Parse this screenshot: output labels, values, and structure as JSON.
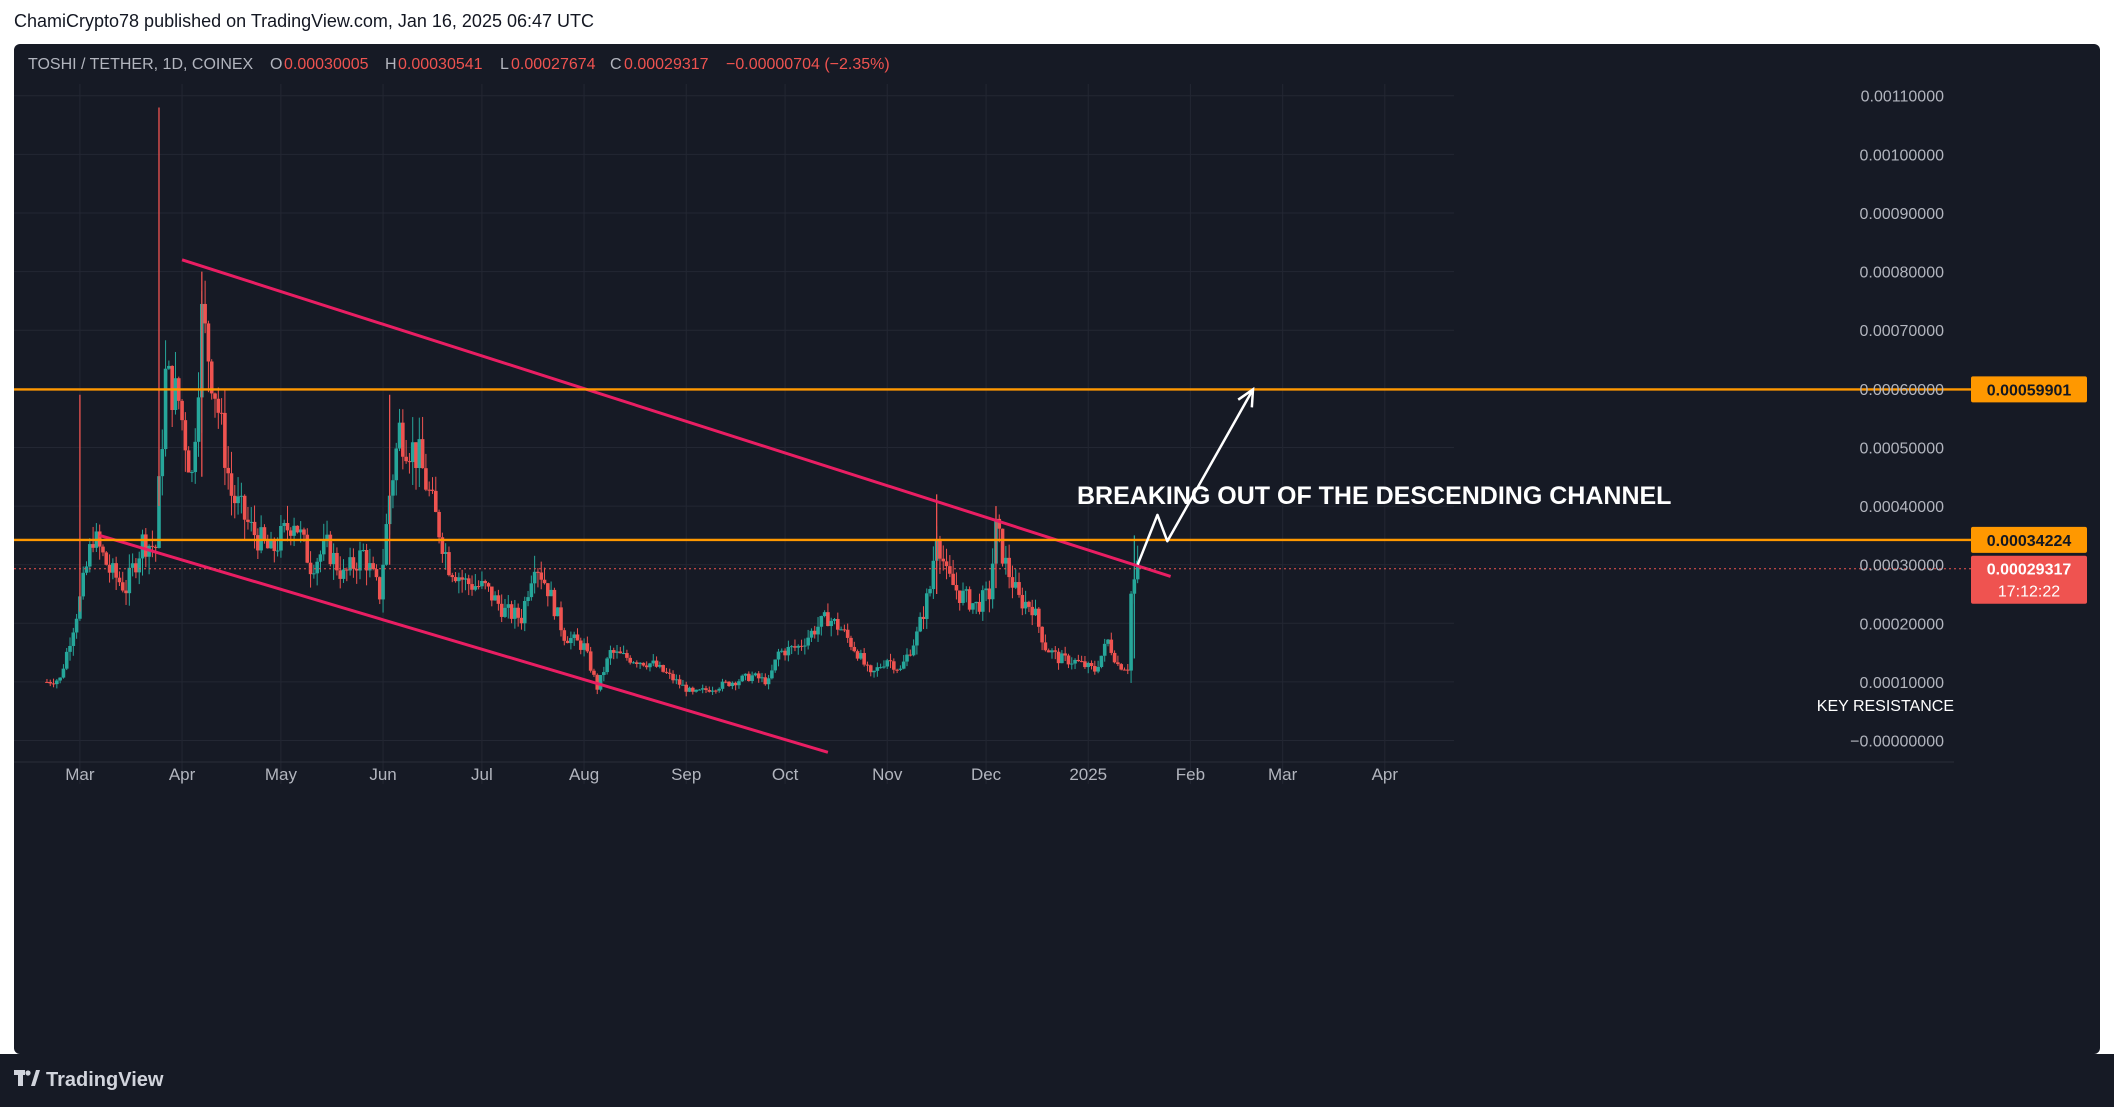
{
  "publish_line": "ChamiCrypto78 published on TradingView.com, Jan 16, 2025 06:47 UTC",
  "brand": "TradingView",
  "colors": {
    "background": "#161a25",
    "grid": "#232733",
    "up": "#26a69a",
    "down": "#ef5350",
    "channel": "#e91e63",
    "level": "#ff9800",
    "text": "#b2b5be",
    "annotation": "#ffffff"
  },
  "icons": {
    "brand_mark": "tradingview-logo-icon"
  },
  "chart_data": {
    "type": "candlestick",
    "symbol": "TOSHI / TETHER, 1D, COINEX",
    "ohlc": {
      "o_label": "O",
      "o": "0.00030005",
      "h_label": "H",
      "h": "0.00030541",
      "l_label": "L",
      "l": "0.00027674",
      "c_label": "C",
      "c": "0.00029317",
      "change": "−0.00000704 (−2.35%)"
    },
    "x_range": [
      "2024-02-10",
      "2025-04-22"
    ],
    "y_range": [
      -4e-05,
      0.00112
    ],
    "y_ticks": [
      "0.00110000",
      "0.00100000",
      "0.00090000",
      "0.00080000",
      "0.00070000",
      "0.00060000",
      "0.00050000",
      "0.00040000",
      "0.00030000",
      "0.00020000",
      "0.00010000",
      "−0.00000000"
    ],
    "y_tick_values": [
      0.0011,
      0.001,
      0.0009,
      0.0008,
      0.0007,
      0.0006,
      0.0005,
      0.0004,
      0.0003,
      0.0002,
      0.0001,
      0.0
    ],
    "x_ticks": [
      "Mar",
      "Apr",
      "May",
      "Jun",
      "Jul",
      "Aug",
      "Sep",
      "Oct",
      "Nov",
      "Dec",
      "2025",
      "Feb",
      "Mar",
      "Apr"
    ],
    "x_tick_dates": [
      "2024-03-01",
      "2024-04-01",
      "2024-05-01",
      "2024-06-01",
      "2024-07-01",
      "2024-08-01",
      "2024-09-01",
      "2024-10-01",
      "2024-11-01",
      "2024-12-01",
      "2025-01-01",
      "2025-02-01",
      "2025-03-01",
      "2025-04-01"
    ],
    "close_path": [
      [
        "2024-02-20",
        0.0001
      ],
      [
        "2024-02-24",
        0.000105
      ],
      [
        "2024-03-01",
        0.00024
      ],
      [
        "2024-03-05",
        0.00035
      ],
      [
        "2024-03-10",
        0.00029
      ],
      [
        "2024-03-15",
        0.00026
      ],
      [
        "2024-03-20",
        0.00034
      ],
      [
        "2024-03-24",
        0.00033
      ],
      [
        "2024-03-27",
        0.00062
      ],
      [
        "2024-03-31",
        0.00058
      ],
      [
        "2024-04-04",
        0.00045
      ],
      [
        "2024-04-07",
        0.00072
      ],
      [
        "2024-04-11",
        0.0006
      ],
      [
        "2024-04-16",
        0.00042
      ],
      [
        "2024-04-22",
        0.00036
      ],
      [
        "2024-04-28",
        0.00032
      ],
      [
        "2024-05-05",
        0.00038
      ],
      [
        "2024-05-10",
        0.0003
      ],
      [
        "2024-05-15",
        0.00033
      ],
      [
        "2024-05-20",
        0.00028
      ],
      [
        "2024-05-26",
        0.00032
      ],
      [
        "2024-05-31",
        0.00025
      ],
      [
        "2024-06-03",
        0.00042
      ],
      [
        "2024-06-06",
        0.00053
      ],
      [
        "2024-06-12",
        0.00048
      ],
      [
        "2024-06-16",
        0.0004
      ],
      [
        "2024-06-21",
        0.0003
      ],
      [
        "2024-06-26",
        0.00027
      ],
      [
        "2024-07-02",
        0.00026
      ],
      [
        "2024-07-08",
        0.00022
      ],
      [
        "2024-07-13",
        0.00021
      ],
      [
        "2024-07-17",
        0.00031
      ],
      [
        "2024-07-21",
        0.00026
      ],
      [
        "2024-07-26",
        0.00018
      ],
      [
        "2024-08-01",
        0.00016
      ],
      [
        "2024-08-05",
        9e-05
      ],
      [
        "2024-08-09",
        0.00015
      ],
      [
        "2024-08-15",
        0.00014
      ],
      [
        "2024-08-22",
        0.00013
      ],
      [
        "2024-08-28",
        0.000105
      ],
      [
        "2024-09-03",
        8e-05
      ],
      [
        "2024-09-09",
        9e-05
      ],
      [
        "2024-09-15",
        0.0001
      ],
      [
        "2024-09-21",
        0.00011
      ],
      [
        "2024-09-26",
        0.0001
      ],
      [
        "2024-09-29",
        0.00015
      ],
      [
        "2024-10-05",
        0.00016
      ],
      [
        "2024-10-10",
        0.00019
      ],
      [
        "2024-10-14",
        0.00021
      ],
      [
        "2024-10-18",
        0.00019
      ],
      [
        "2024-10-23",
        0.00015
      ],
      [
        "2024-10-27",
        0.00011
      ],
      [
        "2024-11-01",
        0.00014
      ],
      [
        "2024-11-05",
        0.00012
      ],
      [
        "2024-11-10",
        0.00018
      ],
      [
        "2024-11-14",
        0.00026
      ],
      [
        "2024-11-16",
        0.00036
      ],
      [
        "2024-11-19",
        0.00028
      ],
      [
        "2024-11-23",
        0.00025
      ],
      [
        "2024-11-28",
        0.00023
      ],
      [
        "2024-12-02",
        0.00025
      ],
      [
        "2024-12-04",
        0.00036
      ],
      [
        "2024-12-07",
        0.0003
      ],
      [
        "2024-12-11",
        0.00024
      ],
      [
        "2024-12-15",
        0.00023
      ],
      [
        "2024-12-19",
        0.00016
      ],
      [
        "2024-12-23",
        0.00014
      ],
      [
        "2024-12-28",
        0.000135
      ],
      [
        "2025-01-03",
        0.00012
      ],
      [
        "2025-01-07",
        0.00017
      ],
      [
        "2025-01-10",
        0.00013
      ],
      [
        "2025-01-13",
        0.000125
      ],
      [
        "2025-01-14",
        0.00025
      ],
      [
        "2025-01-16",
        0.000293
      ]
    ],
    "spike_wicks": [
      {
        "date": "2024-03-25",
        "high": 0.00108,
        "low": 0.0004
      },
      {
        "date": "2024-04-07",
        "high": 0.0008,
        "low": 0.00045
      },
      {
        "date": "2024-03-01",
        "high": 0.00059,
        "low": 0.00022
      },
      {
        "date": "2024-06-03",
        "high": 0.00059,
        "low": 0.0003
      },
      {
        "date": "2024-11-16",
        "high": 0.00042,
        "low": 0.00025
      },
      {
        "date": "2024-12-04",
        "high": 0.0004,
        "low": 0.00026
      },
      {
        "date": "2025-01-15",
        "high": 0.00035,
        "low": 0.00014
      }
    ],
    "channel_upper": [
      [
        "2024-04-01",
        0.00082
      ],
      [
        "2025-01-26",
        0.00028
      ]
    ],
    "channel_lower": [
      [
        "2024-03-07",
        0.00035
      ],
      [
        "2024-10-14",
        -2e-05
      ]
    ],
    "levels": [
      {
        "name": "target",
        "value": 0.00059901,
        "label": "0.00059901"
      },
      {
        "name": "key-resistance",
        "value": 0.00034224,
        "label": "0.00034224",
        "note": "KEY RESISTANCE"
      }
    ],
    "last_price": {
      "value": 0.00029317,
      "label": "0.00029317",
      "countdown": "17:12:22"
    },
    "projection": [
      [
        "2025-01-16",
        0.0003
      ],
      [
        "2025-01-22",
        0.000385
      ],
      [
        "2025-01-25",
        0.00034
      ],
      [
        "2025-02-20",
        0.000599
      ]
    ],
    "annotation": "BREAKING OUT OF THE DESCENDING CHANNEL",
    "grid": true
  }
}
